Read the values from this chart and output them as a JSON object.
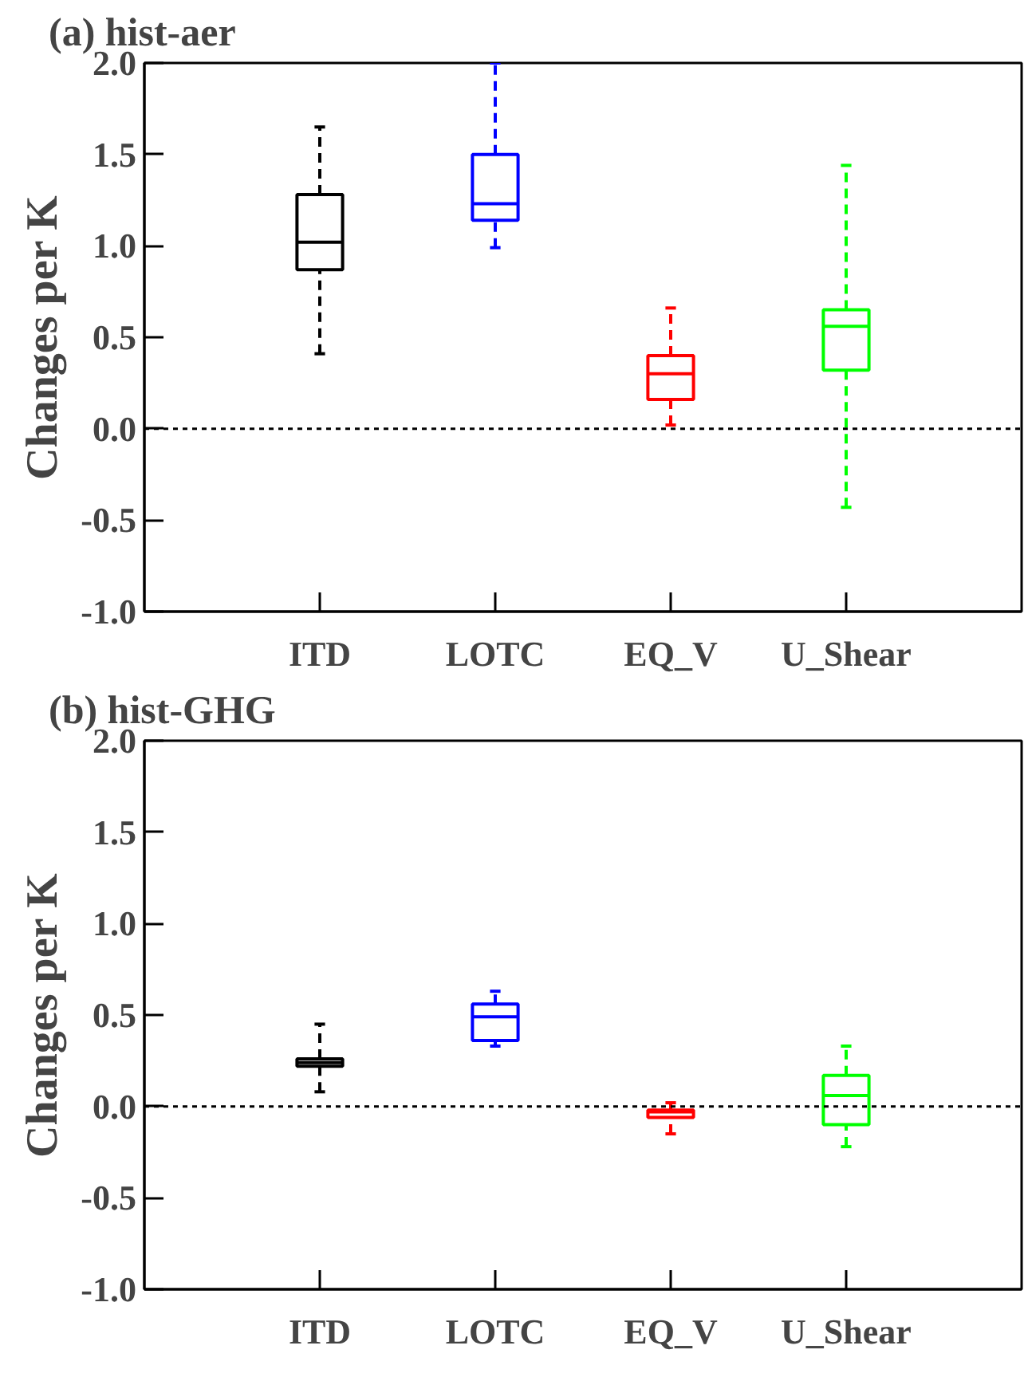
{
  "chart_data": [
    {
      "type": "box",
      "title": "(a) hist-aer",
      "ylabel": "Changes per K",
      "categories": [
        "ITD",
        "LOTC",
        "EQ_V",
        "U_Shear"
      ],
      "colors": [
        "#000000",
        "#0000ff",
        "#ff0000",
        "#00ff00"
      ],
      "line_style": "dashed",
      "ylim": [
        -1.0,
        2.0
      ],
      "yticks": [
        {
          "value": -1.0,
          "label": "-1.0"
        },
        {
          "value": -0.5,
          "label": "-0.5"
        },
        {
          "value": 0.0,
          "label": "0.0"
        },
        {
          "value": 0.5,
          "label": "0.5"
        },
        {
          "value": 1.0,
          "label": "1.0"
        },
        {
          "value": 1.5,
          "label": "1.5"
        },
        {
          "value": 2.0,
          "label": "2.0"
        }
      ],
      "grid": false,
      "ref_lines": [
        {
          "axis": "y",
          "value": 0.0,
          "color": "#000000",
          "line_style": "dotted"
        }
      ],
      "boxes": [
        {
          "low": 0.41,
          "q1": 0.87,
          "median": 1.02,
          "q3": 1.28,
          "high": 1.65
        },
        {
          "low": 0.99,
          "q1": 1.14,
          "median": 1.23,
          "q3": 1.5,
          "high": 2.0
        },
        {
          "low": 0.02,
          "q1": 0.16,
          "median": 0.3,
          "q3": 0.4,
          "high": 0.66
        },
        {
          "low": -0.43,
          "q1": 0.32,
          "median": 0.56,
          "q3": 0.65,
          "high": 1.44
        }
      ]
    },
    {
      "type": "box",
      "title": "(b) hist-GHG",
      "ylabel": "Changes per K",
      "categories": [
        "ITD",
        "LOTC",
        "EQ_V",
        "U_Shear"
      ],
      "colors": [
        "#000000",
        "#0000ff",
        "#ff0000",
        "#00ff00"
      ],
      "line_style": "dashed",
      "ylim": [
        -1.0,
        2.0
      ],
      "yticks": [
        {
          "value": -1.0,
          "label": "-1.0"
        },
        {
          "value": -0.5,
          "label": "-0.5"
        },
        {
          "value": 0.0,
          "label": "0.0"
        },
        {
          "value": 0.5,
          "label": "0.5"
        },
        {
          "value": 1.0,
          "label": "1.0"
        },
        {
          "value": 1.5,
          "label": "1.5"
        },
        {
          "value": 2.0,
          "label": "2.0"
        }
      ],
      "grid": false,
      "ref_lines": [
        {
          "axis": "y",
          "value": 0.0,
          "color": "#000000",
          "line_style": "dotted"
        }
      ],
      "boxes": [
        {
          "low": 0.08,
          "q1": 0.22,
          "median": 0.24,
          "q3": 0.26,
          "high": 0.45
        },
        {
          "low": 0.33,
          "q1": 0.36,
          "median": 0.49,
          "q3": 0.56,
          "high": 0.63
        },
        {
          "low": -0.15,
          "q1": -0.06,
          "median": -0.03,
          "q3": -0.02,
          "high": 0.02
        },
        {
          "low": -0.22,
          "q1": -0.1,
          "median": 0.06,
          "q3": 0.17,
          "high": 0.33
        }
      ]
    }
  ]
}
